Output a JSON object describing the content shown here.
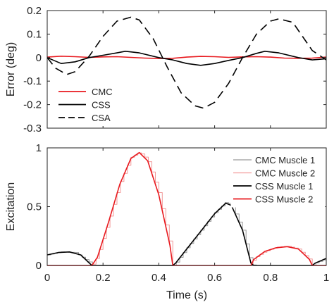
{
  "chart_data": [
    {
      "type": "line",
      "ylabel": "Error (deg)",
      "xlim": [
        0,
        1
      ],
      "ylim": [
        -0.3,
        0.2
      ],
      "xticks": [
        0,
        0.2,
        0.4,
        0.6,
        0.8,
        1
      ],
      "yticks": [
        -0.3,
        -0.2,
        -0.1,
        0,
        0.1,
        0.2
      ],
      "ytick_labels": [
        "-0.3",
        "-0.2",
        "-0.1",
        "0",
        "0.1",
        "0.2"
      ],
      "grid": false,
      "legend_position": "bottom-left",
      "series": [
        {
          "name": "CMC",
          "color": "#e8191e",
          "style": "solid",
          "x": [
            0,
            0.05,
            0.1,
            0.15,
            0.2,
            0.25,
            0.3,
            0.35,
            0.4,
            0.45,
            0.5,
            0.55,
            0.6,
            0.65,
            0.7,
            0.75,
            0.8,
            0.85,
            0.9,
            0.95,
            1
          ],
          "y": [
            0.002,
            0.006,
            0.004,
            0.001,
            0.003,
            0.004,
            0.001,
            -0.002,
            -0.004,
            -0.003,
            0.002,
            0.005,
            0.004,
            0.001,
            0.003,
            0.004,
            0.002,
            -0.002,
            -0.003,
            -0.002,
            0.002
          ]
        },
        {
          "name": "CSS",
          "color": "#000000",
          "style": "solid",
          "x": [
            0,
            0.05,
            0.1,
            0.15,
            0.2,
            0.25,
            0.28,
            0.33,
            0.4,
            0.45,
            0.5,
            0.55,
            0.6,
            0.65,
            0.7,
            0.75,
            0.78,
            0.83,
            0.9,
            0.95,
            1
          ],
          "y": [
            0,
            -0.025,
            -0.018,
            0,
            0.01,
            0.02,
            0.027,
            0.02,
            0,
            -0.01,
            -0.025,
            -0.033,
            -0.025,
            -0.012,
            0,
            0.018,
            0.027,
            0.02,
            0,
            -0.01,
            -0.005
          ]
        },
        {
          "name": "CSA",
          "color": "#000000",
          "style": "dashed",
          "x": [
            0,
            0.03,
            0.07,
            0.1,
            0.15,
            0.2,
            0.25,
            0.3,
            0.33,
            0.38,
            0.43,
            0.48,
            0.53,
            0.56,
            0.6,
            0.65,
            0.7,
            0.75,
            0.8,
            0.83,
            0.88,
            0.95,
            1
          ],
          "y": [
            0,
            -0.045,
            -0.072,
            -0.06,
            0.005,
            0.09,
            0.155,
            0.172,
            0.16,
            0.08,
            -0.04,
            -0.15,
            -0.205,
            -0.215,
            -0.19,
            -0.11,
            0,
            0.1,
            0.155,
            0.165,
            0.15,
            0.03,
            -0.01
          ]
        }
      ]
    },
    {
      "type": "line",
      "xlabel": "Time (s)",
      "ylabel": "Excitation",
      "xlim": [
        0,
        1
      ],
      "ylim": [
        0,
        1
      ],
      "xticks": [
        0,
        0.2,
        0.4,
        0.6,
        0.8,
        1
      ],
      "xtick_labels": [
        "0",
        "0.2",
        "0.4",
        "0.6",
        "0.8",
        "1"
      ],
      "yticks": [
        0,
        0.5,
        1
      ],
      "ytick_labels": [
        "0",
        "0.5",
        "1"
      ],
      "grid": false,
      "legend_position": "top-right",
      "series": [
        {
          "name": "CMC Muscle 1",
          "color": "#9a9a9a",
          "style": "stairs",
          "x": [
            0,
            0.05,
            0.1,
            0.15,
            0.16,
            0.45,
            0.46,
            0.5,
            0.55,
            0.6,
            0.64,
            0.66,
            0.7,
            0.73,
            0.74,
            0.95,
            0.96,
            1
          ],
          "y": [
            0.09,
            0.115,
            0.11,
            0.03,
            0,
            0,
            0.02,
            0.15,
            0.3,
            0.45,
            0.54,
            0.52,
            0.3,
            0.02,
            0,
            0,
            0.02,
            0.06
          ]
        },
        {
          "name": "CMC Muscle 2",
          "color": "#f29a9a",
          "style": "stairs",
          "x": [
            0,
            0.16,
            0.18,
            0.22,
            0.26,
            0.3,
            0.33,
            0.36,
            0.4,
            0.44,
            0.45,
            0.73,
            0.74,
            0.78,
            0.82,
            0.86,
            0.9,
            0.94,
            0.95,
            1
          ],
          "y": [
            0,
            0,
            0.08,
            0.38,
            0.7,
            0.92,
            0.965,
            0.9,
            0.62,
            0.18,
            0,
            0,
            0.06,
            0.12,
            0.155,
            0.165,
            0.14,
            0.05,
            0,
            0
          ]
        },
        {
          "name": "CSS Muscle 1",
          "color": "#000000",
          "style": "solid",
          "x": [
            0,
            0.04,
            0.08,
            0.12,
            0.16,
            0.45,
            0.46,
            0.5,
            0.55,
            0.6,
            0.64,
            0.66,
            0.7,
            0.73,
            0.74,
            0.95,
            0.96,
            1
          ],
          "y": [
            0.09,
            0.11,
            0.115,
            0.09,
            0,
            0,
            0.02,
            0.14,
            0.29,
            0.44,
            0.53,
            0.51,
            0.3,
            0.02,
            0,
            0,
            0.02,
            0.06
          ]
        },
        {
          "name": "CSS Muscle 2",
          "color": "#e8191e",
          "style": "solid",
          "x": [
            0,
            0.16,
            0.18,
            0.22,
            0.26,
            0.3,
            0.33,
            0.36,
            0.4,
            0.44,
            0.45,
            0.73,
            0.74,
            0.78,
            0.82,
            0.86,
            0.9,
            0.94,
            0.95,
            1
          ],
          "y": [
            0,
            0,
            0.07,
            0.37,
            0.69,
            0.91,
            0.96,
            0.89,
            0.6,
            0.17,
            0,
            0,
            0.05,
            0.12,
            0.15,
            0.16,
            0.14,
            0.05,
            0,
            0
          ]
        }
      ]
    }
  ]
}
